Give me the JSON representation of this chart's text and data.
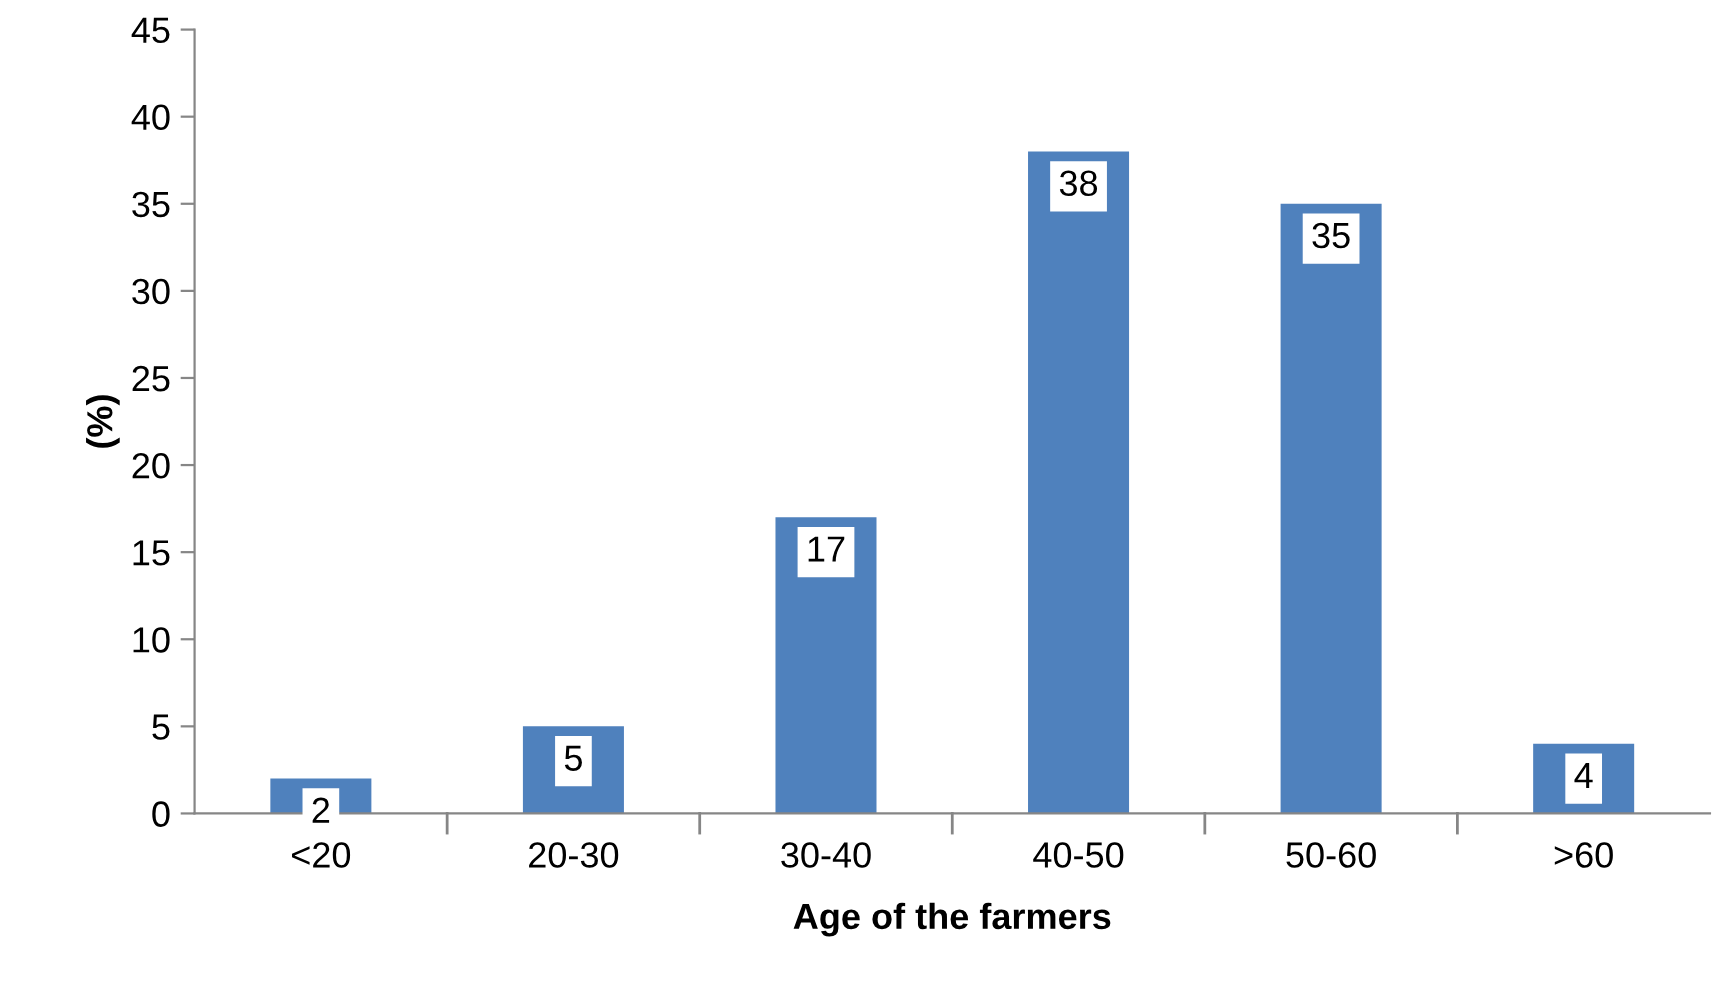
{
  "chart_data": {
    "type": "bar",
    "xlabel": "Age of the farmers",
    "ylabel": "(%)",
    "categories": [
      "<20",
      "20-30",
      "30-40",
      "40-50",
      "50-60",
      ">60"
    ],
    "values": [
      2,
      5,
      17,
      38,
      35,
      4
    ],
    "color": "#4f81bd",
    "ylim": [
      0,
      45
    ],
    "yticks": [
      0,
      5,
      10,
      15,
      20,
      25,
      30,
      35,
      40,
      45
    ],
    "grid": false,
    "legend": false,
    "data_labels": true
  }
}
